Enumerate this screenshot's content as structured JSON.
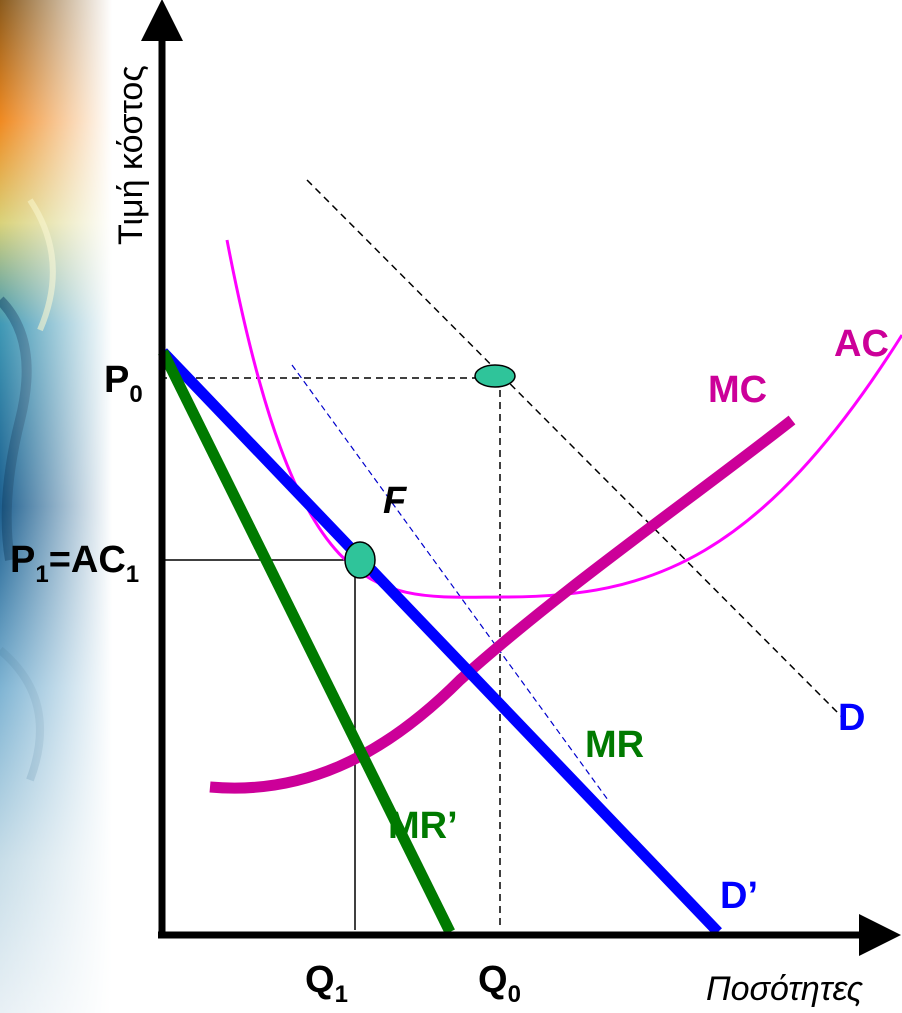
{
  "axes": {
    "y_title": "Τιμή κόστος",
    "x_title": "Ποσότητες"
  },
  "price_labels": {
    "p0_main": "P",
    "p0_sub": "0",
    "p1_main_a": "P",
    "p1_sub_a": "1",
    "p1_main_b": "=AC",
    "p1_sub_b": "1"
  },
  "quantity_labels": {
    "q1_main": "Q",
    "q1_sub": "1",
    "q0_main": "Q",
    "q0_sub": "0"
  },
  "curve_labels": {
    "ac": "AC",
    "mc": "MC",
    "f": "F",
    "d": "D",
    "mr": "MR",
    "mr_prime": "MR’",
    "d_prime": "D’"
  },
  "colors": {
    "ac": "#ff00ff",
    "mc": "#cc0099",
    "d_prime": "#0000ff",
    "mr_prime": "#007a00",
    "mr": "#0000cc",
    "point": "#2fc49a",
    "label_green": "#007a00",
    "label_blue": "#0000ff",
    "label_magenta": "#cc0099"
  }
}
